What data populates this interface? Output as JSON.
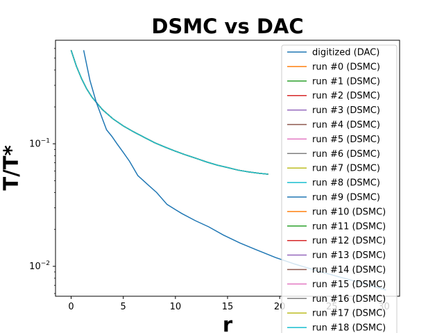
{
  "chart_data": {
    "type": "line",
    "title": "DSMC vs DAC",
    "xlabel": "r",
    "ylabel": "T/T*",
    "xlim": [
      -1.5,
      31.5
    ],
    "ylim": [
      0.0057,
      0.7
    ],
    "yscale": "log",
    "x_ticks": [
      0,
      5,
      10,
      15,
      20,
      25,
      30
    ],
    "y_ticks": [
      {
        "value": 0.1,
        "label": "10^-1"
      },
      {
        "value": 0.01,
        "label": "10^-2"
      }
    ],
    "grid": false,
    "legend_position": "top-right",
    "series": [
      {
        "name": "digitized (DAC)",
        "color": "#1f77b4",
        "x": [
          1.2,
          1.8,
          2.4,
          3.0,
          3.4,
          3.9,
          4.4,
          5.0,
          5.6,
          6.4,
          7.4,
          8.2,
          9.2,
          10.6,
          11.9,
          13.2,
          14.6,
          16.2,
          17.8,
          19.6,
          21.5,
          23.6,
          25.7,
          27.9,
          30.2
        ],
        "y": [
          0.58,
          0.33,
          0.22,
          0.16,
          0.13,
          0.115,
          0.1,
          0.085,
          0.072,
          0.055,
          0.046,
          0.04,
          0.032,
          0.027,
          0.0236,
          0.021,
          0.018,
          0.0155,
          0.0136,
          0.0118,
          0.0104,
          0.0092,
          0.0082,
          0.0073,
          0.0064
        ]
      },
      {
        "name": "run #0 (DSMC)",
        "color": "#ff7f0e"
      },
      {
        "name": "run #1 (DSMC)",
        "color": "#2ca02c"
      },
      {
        "name": "run #2 (DSMC)",
        "color": "#d62728"
      },
      {
        "name": "run #3 (DSMC)",
        "color": "#9467bd"
      },
      {
        "name": "run #4 (DSMC)",
        "color": "#8c564b"
      },
      {
        "name": "run #5 (DSMC)",
        "color": "#e377c2"
      },
      {
        "name": "run #6 (DSMC)",
        "color": "#7f7f7f"
      },
      {
        "name": "run #7 (DSMC)",
        "color": "#bcbd22"
      },
      {
        "name": "run #8 (DSMC)",
        "color": "#17becf"
      },
      {
        "name": "run #9 (DSMC)",
        "color": "#1f77b4"
      },
      {
        "name": "run #10 (DSMC)",
        "color": "#ff7f0e"
      },
      {
        "name": "run #11 (DSMC)",
        "color": "#2ca02c"
      },
      {
        "name": "run #12 (DSMC)",
        "color": "#d62728"
      },
      {
        "name": "run #13 (DSMC)",
        "color": "#9467bd"
      },
      {
        "name": "run #14 (DSMC)",
        "color": "#8c564b"
      },
      {
        "name": "run #15 (DSMC)",
        "color": "#e377c2"
      },
      {
        "name": "run #16 (DSMC)",
        "color": "#7f7f7f"
      },
      {
        "name": "run #17 (DSMC)",
        "color": "#bcbd22"
      },
      {
        "name": "run #18 (DSMC)",
        "color": "#17becf"
      }
    ],
    "dsmc_curve": {
      "x": [
        0,
        0.5,
        1,
        1.5,
        2,
        3,
        4,
        5,
        6,
        7,
        8,
        9,
        10,
        11,
        12,
        13,
        14,
        15,
        16,
        17,
        18,
        18.9
      ],
      "y": [
        0.58,
        0.43,
        0.34,
        0.28,
        0.24,
        0.19,
        0.16,
        0.14,
        0.125,
        0.113,
        0.102,
        0.094,
        0.087,
        0.081,
        0.076,
        0.071,
        0.067,
        0.064,
        0.061,
        0.059,
        0.0575,
        0.0565
      ]
    }
  }
}
